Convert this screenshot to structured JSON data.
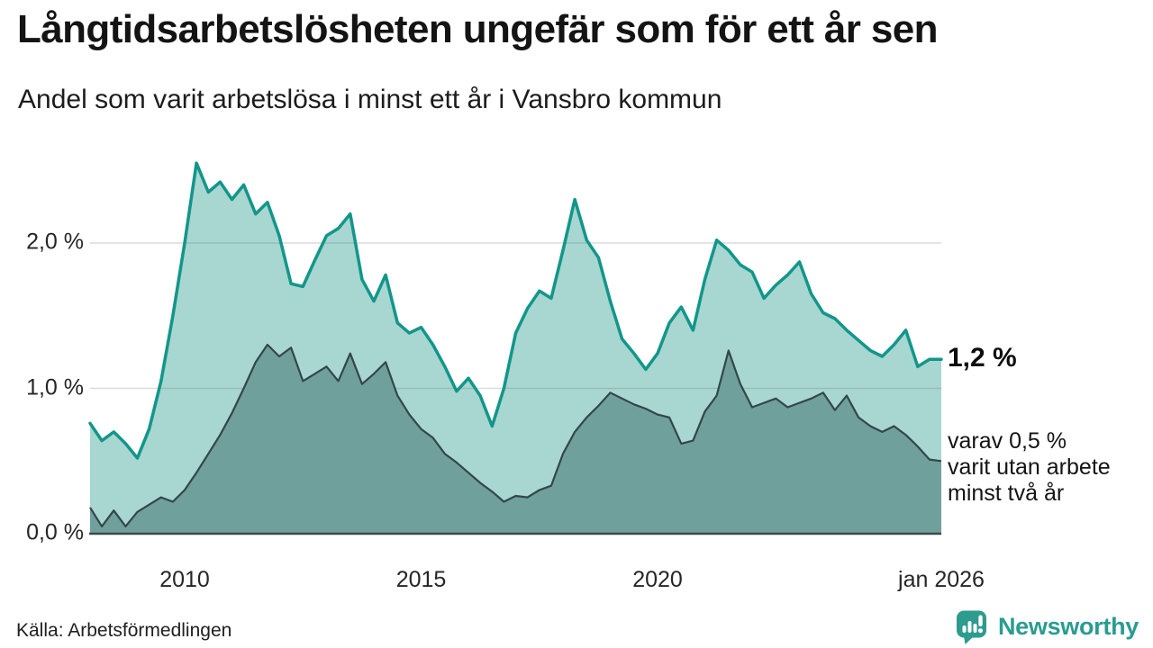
{
  "header": {
    "title": "Långtidsarbetslösheten ungefär som för ett år sen",
    "subtitle": "Andel som varit arbetslösa i minst ett år i Vansbro kommun"
  },
  "footer": {
    "source": "Källa: Arbetsförmedlingen",
    "brand": "Newsworthy"
  },
  "colors": {
    "line_total": "#12968a",
    "fill_total": "#a8d6d0",
    "fill_two_year": "#70a09b",
    "line_two_year": "#33464b",
    "grid": "rgba(90,95,110,0.22)",
    "axis": "#3b4a4e",
    "brand_teal": "#2a9c90",
    "text": "#141414"
  },
  "chart_data": {
    "type": "area",
    "title": "Långtidsarbetslösheten ungefär som för ett år sen",
    "subtitle": "Andel som varit arbetslösa i minst ett år i Vansbro kommun",
    "x_unit": "decimal year, quarterly estimates read from graph",
    "x_range": [
      2008,
      2026
    ],
    "ylim": [
      0,
      2.65
    ],
    "grid": "horizontal gridlines at 1.0 and 2.0",
    "legend": "none (direct annotations at right edge of plot)",
    "series": [
      {
        "name": "Arbetslösa minst ett år (totalt)",
        "end_value": "1,2 %",
        "values": [
          0.76,
          0.64,
          0.7,
          0.62,
          0.52,
          0.72,
          1.05,
          1.5,
          2.0,
          2.55,
          2.35,
          2.42,
          2.3,
          2.4,
          2.2,
          2.28,
          2.05,
          1.72,
          1.7,
          1.88,
          2.05,
          2.1,
          2.2,
          1.75,
          1.6,
          1.78,
          1.45,
          1.38,
          1.42,
          1.3,
          1.15,
          0.98,
          1.07,
          0.95,
          0.74,
          1.0,
          1.38,
          1.55,
          1.67,
          1.62,
          1.95,
          2.3,
          2.02,
          1.9,
          1.6,
          1.34,
          1.24,
          1.13,
          1.24,
          1.45,
          1.56,
          1.4,
          1.75,
          2.02,
          1.95,
          1.85,
          1.8,
          1.62,
          1.71,
          1.78,
          1.87,
          1.65,
          1.52,
          1.48,
          1.4,
          1.33,
          1.26,
          1.22,
          1.3,
          1.4,
          1.15,
          1.2,
          1.2
        ]
      },
      {
        "name": "varav utan arbete minst två år",
        "end_value": "0,5 %",
        "values": [
          0.18,
          0.05,
          0.16,
          0.05,
          0.15,
          0.2,
          0.25,
          0.22,
          0.3,
          0.42,
          0.55,
          0.68,
          0.83,
          1.0,
          1.18,
          1.3,
          1.22,
          1.28,
          1.05,
          1.1,
          1.15,
          1.05,
          1.24,
          1.03,
          1.1,
          1.18,
          0.95,
          0.82,
          0.72,
          0.66,
          0.55,
          0.49,
          0.42,
          0.35,
          0.29,
          0.22,
          0.26,
          0.25,
          0.3,
          0.33,
          0.55,
          0.7,
          0.8,
          0.88,
          0.97,
          0.93,
          0.89,
          0.86,
          0.82,
          0.8,
          0.62,
          0.64,
          0.84,
          0.95,
          1.26,
          1.03,
          0.87,
          0.9,
          0.93,
          0.87,
          0.9,
          0.93,
          0.97,
          0.85,
          0.95,
          0.8,
          0.74,
          0.7,
          0.74,
          0.68,
          0.6,
          0.51,
          0.5
        ]
      }
    ],
    "yticks": [
      {
        "value": 0,
        "label": "0,0 %"
      },
      {
        "value": 1,
        "label": "1,0 %"
      },
      {
        "value": 2,
        "label": "2,0 %"
      }
    ],
    "xticks": [
      {
        "value": 2010,
        "label": "2010"
      },
      {
        "value": 2015,
        "label": "2015"
      },
      {
        "value": 2020,
        "label": "2020"
      },
      {
        "value": 2026,
        "label": "jan 2026"
      }
    ],
    "end_labels": {
      "total": "1,2 %",
      "two_year": "varav 0,5 %\nvarit utan arbete\nminst två år"
    },
    "source": "Källa: Arbetsförmedlingen"
  }
}
